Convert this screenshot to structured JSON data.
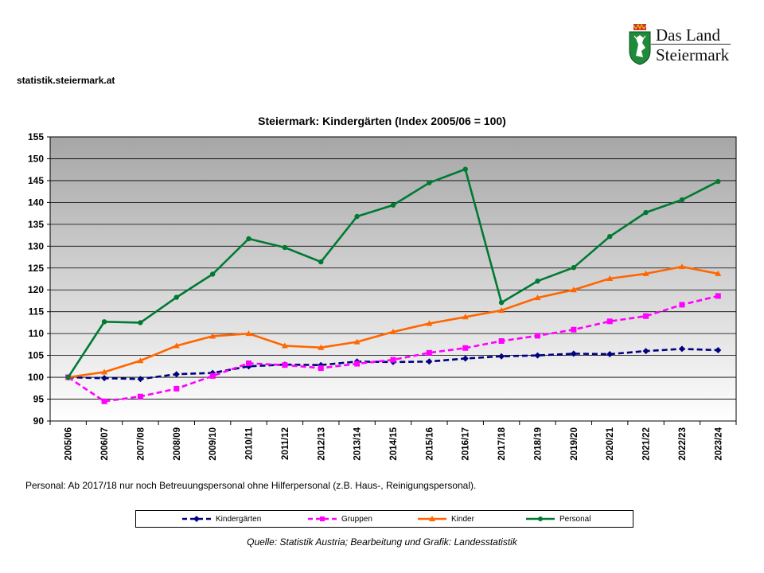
{
  "header": {
    "site": "statistik.steiermark.at",
    "logo_line1": "Das Land",
    "logo_line2": "Steiermark"
  },
  "footnote": "Personal: Ab 2017/18  nur noch Betreuungspersonal ohne Hilferpersonal (z.B. Haus-, Reinigungspersonal).",
  "source": "Quelle: Statistik Austria; Bearbeitung und Grafik: Landesstatistik",
  "colors": {
    "kindergaerten": "#000080",
    "gruppen": "#ff00ff",
    "kinder": "#ff6600",
    "personal": "#007a33"
  },
  "chart_data": {
    "type": "line",
    "title": "Steiermark: Kindergärten (Index 2005/06 = 100)",
    "xlabel": "",
    "ylabel": "",
    "ylim": [
      90,
      155
    ],
    "yticks": [
      90,
      95,
      100,
      105,
      110,
      115,
      120,
      125,
      130,
      135,
      140,
      145,
      150,
      155
    ],
    "grid": true,
    "legend_position": "bottom",
    "categories": [
      "2005/06",
      "2006/07",
      "2007/08",
      "2008/09",
      "2009/10",
      "2010/11",
      "2011/12",
      "2012/13",
      "2013/14",
      "2014/15",
      "2015/16",
      "2016/17",
      "2017/18",
      "2018/19",
      "2019/20",
      "2020/21",
      "2021/22",
      "2022/23",
      "2023/24"
    ],
    "series": [
      {
        "name": "Kindergärten",
        "key": "kindergaerten",
        "style": "dashed",
        "marker": "diamond",
        "values": [
          100,
          99.8,
          99.6,
          100.7,
          101.0,
          102.5,
          102.9,
          102.8,
          103.6,
          103.5,
          103.6,
          104.3,
          104.8,
          105.0,
          105.4,
          105.3,
          106.0,
          106.5,
          106.2
        ]
      },
      {
        "name": "Gruppen",
        "key": "gruppen",
        "style": "dashed",
        "marker": "square",
        "values": [
          100,
          94.5,
          95.6,
          97.4,
          100.3,
          103.2,
          102.8,
          102.1,
          103.1,
          104.0,
          105.6,
          106.7,
          108.3,
          109.5,
          110.9,
          112.8,
          114.0,
          116.6,
          118.6
        ]
      },
      {
        "name": "Kinder",
        "key": "kinder",
        "style": "solid",
        "marker": "triangle",
        "values": [
          100,
          101.2,
          103.8,
          107.2,
          109.4,
          110.0,
          107.2,
          106.8,
          108.1,
          110.4,
          112.3,
          113.8,
          115.3,
          118.2,
          120.0,
          122.6,
          123.7,
          125.3,
          123.7
        ]
      },
      {
        "name": "Personal",
        "key": "personal",
        "style": "solid",
        "marker": "circle",
        "values": [
          100,
          112.7,
          112.5,
          118.3,
          123.6,
          131.7,
          129.7,
          126.4,
          136.8,
          139.4,
          144.5,
          147.6,
          117.1,
          122.0,
          125.1,
          132.2,
          137.7,
          140.6,
          144.8
        ]
      }
    ]
  }
}
